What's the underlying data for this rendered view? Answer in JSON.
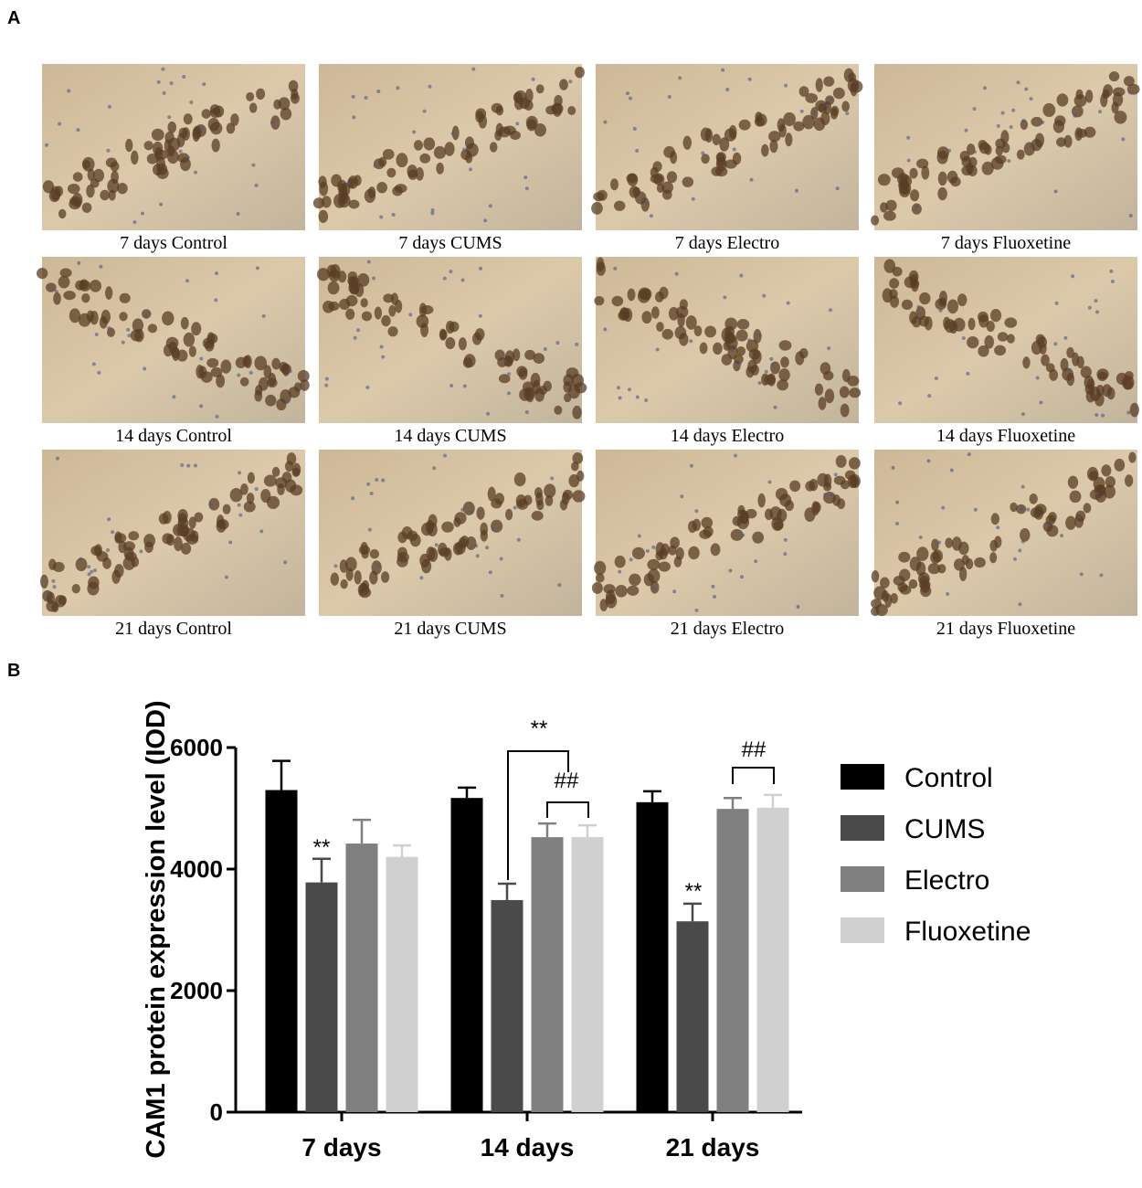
{
  "panel_labels": [
    "A",
    "B"
  ],
  "image_captions": [
    [
      "7 days Control",
      "7 days CUMS",
      "7 days Electro",
      "7 days Fluoxetine"
    ],
    [
      "14 days Control",
      "14 days CUMS",
      "14 days Electro",
      "14 days Fluoxetine"
    ],
    [
      "21 days Control",
      "21 days CUMS",
      "21 days Electro",
      "21 days Fluoxetine"
    ]
  ],
  "chart_data": {
    "type": "bar",
    "y_label": "CAM1 protein expression level (IOD)",
    "categories": [
      "7 days",
      "14 days",
      "21 days"
    ],
    "series": [
      {
        "name": "Control",
        "color": "#000000",
        "values": [
          5300,
          5170,
          5100
        ],
        "errors": [
          480,
          170,
          180
        ]
      },
      {
        "name": "CUMS",
        "color": "#4a4a4a",
        "values": [
          3780,
          3490,
          3140
        ],
        "errors": [
          390,
          270,
          290
        ]
      },
      {
        "name": "Electro",
        "color": "#808080",
        "values": [
          4420,
          4525,
          4990
        ],
        "errors": [
          390,
          225,
          180
        ]
      },
      {
        "name": "Fluoxetine",
        "color": "#d0d0d0",
        "values": [
          4200,
          4525,
          5010
        ],
        "errors": [
          190,
          195,
          210
        ]
      }
    ],
    "ylim": [
      0,
      6000
    ],
    "yticks": [
      0,
      2000,
      4000,
      6000
    ],
    "annotations": [
      "**",
      "**",
      "##",
      "**",
      "##"
    ]
  }
}
